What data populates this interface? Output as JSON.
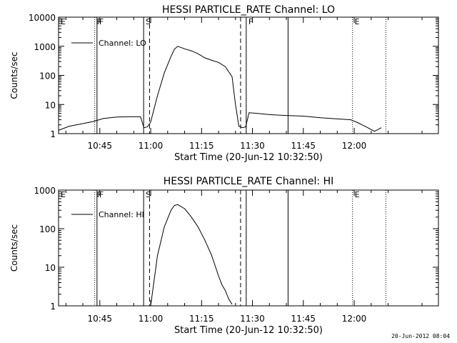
{
  "chart_data": [
    {
      "type": "line",
      "title": "HESSI PARTICLE_RATE Channel: LO",
      "xlabel": "Start Time (20-Jun-12 10:32:50)",
      "ylabel": "Counts/sec",
      "y_scale": "log",
      "ylim": [
        1,
        10000
      ],
      "xlim_minutes_after_start": [
        0,
        112
      ],
      "x_tick_labels": [
        "10:45",
        "11:00",
        "11:15",
        "11:30",
        "11:45",
        "12:00"
      ],
      "y_tick_labels": [
        "1",
        "10",
        "100",
        "1000",
        "10000"
      ],
      "legend": "Channel: LO",
      "markers": [
        {
          "label": "E",
          "time": "10:32:50",
          "style": "none"
        },
        {
          "label": "F",
          "time": "10:43:30",
          "style": "dotted"
        },
        {
          "label": "F",
          "time": "10:44:10",
          "style": "solid"
        },
        {
          "label": "S",
          "time": "10:57:55",
          "style": "solid"
        },
        {
          "label": "",
          "time": "10:59:40",
          "style": "dashed"
        },
        {
          "label": "",
          "time": "11:26:30",
          "style": "dashed"
        },
        {
          "label": "F",
          "time": "11:28:10",
          "style": "solid"
        },
        {
          "label": "",
          "time": "11:40:30",
          "style": "solid"
        },
        {
          "label": "E",
          "time": "11:59:30",
          "style": "dotted"
        },
        {
          "label": "",
          "time": "12:09:20",
          "style": "dotted"
        }
      ],
      "series": [
        {
          "name": "Channel: LO",
          "x": [
            "10:32:50",
            "10:36",
            "10:40",
            "10:43",
            "10:46",
            "10:50",
            "10:54",
            "10:57",
            "10:58",
            "10:59",
            "11:00",
            "11:02",
            "11:04",
            "11:06",
            "11:07",
            "11:08",
            "11:10",
            "11:12",
            "11:14",
            "11:16",
            "11:18",
            "11:20",
            "11:22",
            "11:24",
            "11:25",
            "11:26",
            "11:27",
            "11:28",
            "11:29",
            "11:31",
            "11:35",
            "11:40",
            "11:45",
            "11:50",
            "11:55",
            "11:59",
            "12:01",
            "12:04",
            "12:06",
            "12:08"
          ],
          "y": [
            1.3,
            1.8,
            2.2,
            2.6,
            3.3,
            3.7,
            3.8,
            3.8,
            1.6,
            1.7,
            2.5,
            20,
            120,
            450,
            800,
            1000,
            820,
            700,
            550,
            400,
            330,
            280,
            200,
            90,
            10,
            1.8,
            1.6,
            1.7,
            5.2,
            5.0,
            4.5,
            4.2,
            4.0,
            3.5,
            3.2,
            3.0,
            2.4,
            1.6,
            1.2,
            1.6
          ]
        }
      ]
    },
    {
      "type": "line",
      "title": "HESSI PARTICLE_RATE Channel: HI",
      "xlabel": "Start Time (20-Jun-12 10:32:50)",
      "ylabel": "Counts/sec",
      "y_scale": "log",
      "ylim": [
        1,
        1000
      ],
      "xlim_minutes_after_start": [
        0,
        112
      ],
      "x_tick_labels": [
        "10:45",
        "11:00",
        "11:15",
        "11:30",
        "11:45",
        "12:00"
      ],
      "y_tick_labels": [
        "1",
        "10",
        "100",
        "1000"
      ],
      "legend": "Channel: HI",
      "markers": [
        {
          "label": "E",
          "time": "10:32:50",
          "style": "none"
        },
        {
          "label": "F",
          "time": "10:43:30",
          "style": "dotted"
        },
        {
          "label": "F",
          "time": "10:44:10",
          "style": "solid"
        },
        {
          "label": "S",
          "time": "10:57:55",
          "style": "solid"
        },
        {
          "label": "",
          "time": "10:59:40",
          "style": "dashed"
        },
        {
          "label": "",
          "time": "11:26:30",
          "style": "dashed"
        },
        {
          "label": "",
          "time": "11:28:10",
          "style": "solid"
        },
        {
          "label": "",
          "time": "11:40:30",
          "style": "solid"
        },
        {
          "label": "E",
          "time": "11:59:30",
          "style": "dotted"
        },
        {
          "label": "",
          "time": "12:09:20",
          "style": "dotted"
        }
      ],
      "series": [
        {
          "name": "Channel: HI",
          "x": [
            "11:00",
            "11:02",
            "11:04",
            "11:06",
            "11:07",
            "11:08",
            "11:10",
            "11:12",
            "11:14",
            "11:16",
            "11:18",
            "11:20",
            "11:21",
            "11:22",
            "11:23",
            "11:24"
          ],
          "y": [
            1,
            20,
            110,
            300,
            400,
            420,
            330,
            200,
            110,
            50,
            20,
            6,
            3.5,
            2.5,
            1.5,
            1.1
          ]
        }
      ]
    }
  ],
  "footer": "20-Jun-2012 08:04"
}
